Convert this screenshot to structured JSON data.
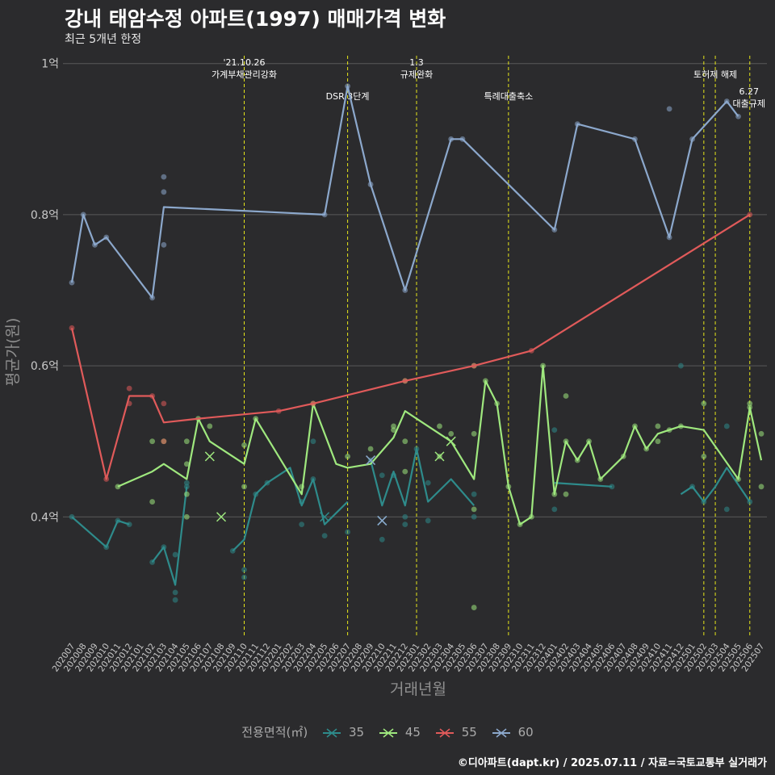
{
  "title": "강내 태암수정 아파트(1997) 매매가격 변화",
  "subtitle": "최근 5개년 한정",
  "caption": "©디아파트(dapt.kr) / 2025.07.11 / 자료=국토교통부 실거래가",
  "legend": {
    "title": "전용면적(㎡)",
    "items": [
      {
        "label": "35",
        "color": "#2e8b8b"
      },
      {
        "label": "45",
        "color": "#9fe87e"
      },
      {
        "label": "55",
        "color": "#e05a5a"
      },
      {
        "label": "60",
        "color": "#8ca8cc"
      }
    ]
  },
  "chart_data": {
    "type": "line",
    "xlabel": "거래년월",
    "ylabel": "평균가(원)",
    "ylim": [
      0.24,
      1.02
    ],
    "yticks": [
      {
        "value": 0.4,
        "label": "0.4억"
      },
      {
        "value": 0.6,
        "label": "0.6억"
      },
      {
        "value": 0.8,
        "label": "0.8억"
      },
      {
        "value": 1.0,
        "label": "1억"
      }
    ],
    "categories": [
      "202007",
      "202008",
      "202009",
      "202010",
      "202011",
      "202012",
      "202101",
      "202102",
      "202103",
      "202104",
      "202105",
      "202106",
      "202107",
      "202108",
      "202109",
      "202110",
      "202111",
      "202112",
      "202201",
      "202202",
      "202203",
      "202204",
      "202205",
      "202206",
      "202207",
      "202208",
      "202209",
      "202210",
      "202211",
      "202212",
      "202301",
      "202302",
      "202303",
      "202304",
      "202305",
      "202306",
      "202307",
      "202308",
      "202309",
      "202310",
      "202311",
      "202312",
      "202401",
      "202402",
      "202403",
      "202404",
      "202405",
      "202406",
      "202407",
      "202408",
      "202409",
      "202410",
      "202411",
      "202412",
      "202501",
      "202502",
      "202503",
      "202504",
      "202505",
      "202506",
      "202507"
    ],
    "tick_labels": [
      "202007",
      "202008",
      "202009",
      "202010",
      "202011",
      "202012",
      "202101",
      "202102",
      "202103",
      "202104",
      "202105",
      "202106",
      "202107",
      "202108",
      "202109",
      "202110",
      "202111",
      "202112",
      "202201",
      "202202",
      "202203",
      "202204",
      "202205",
      "202206",
      "202207",
      "202208",
      "202209",
      "202210",
      "202211",
      "202212",
      "202301",
      "202302",
      "202303",
      "202304",
      "202305",
      "202306",
      "202307",
      "202308",
      "202309",
      "202310",
      "202311",
      "202312",
      "202401",
      "202402",
      "202403",
      "202404",
      "202405",
      "202406",
      "202407",
      "202408",
      "202409",
      "202410",
      "202411",
      "202412",
      "202501",
      "202502",
      "202503",
      "202504",
      "202505",
      "202506",
      "202507"
    ],
    "events": [
      {
        "x": 15.0,
        "lines": [
          "'21.10.26",
          "가계부채관리강화"
        ],
        "level": 0
      },
      {
        "x": 24.0,
        "lines": [
          "DSR 3단계"
        ],
        "level": 1
      },
      {
        "x": 30.0,
        "lines": [
          "1.3",
          "규제완화"
        ],
        "level": 0
      },
      {
        "x": 38.0,
        "lines": [
          "특례대출축소"
        ],
        "level": 1
      },
      {
        "x": 55.0,
        "lines": [],
        "level": 0
      },
      {
        "x": 56.0,
        "lines": [
          "토허제 해제"
        ],
        "level": 0
      },
      {
        "x": 59.0,
        "lines": [
          "6.27",
          "대출규제"
        ],
        "level": 2
      }
    ],
    "series": [
      {
        "name": "35",
        "color": "#2e8b8b",
        "line": [
          [
            0,
            0.4
          ],
          [
            3,
            0.36
          ],
          [
            4,
            0.395
          ],
          [
            5,
            0.39
          ],
          [
            null,
            null
          ],
          [
            7,
            0.34
          ],
          [
            8,
            0.36
          ],
          [
            9,
            0.31
          ],
          [
            10,
            0.44
          ],
          [
            null,
            null
          ],
          [
            14,
            0.355
          ],
          [
            15,
            0.37
          ],
          [
            16,
            0.43
          ],
          [
            17,
            0.445
          ],
          [
            19,
            0.465
          ],
          [
            20,
            0.415
          ],
          [
            21,
            0.45
          ],
          [
            22,
            0.39
          ],
          [
            24,
            0.42
          ],
          [
            null,
            null
          ],
          [
            26,
            0.475
          ],
          [
            27,
            0.415
          ],
          [
            28,
            0.46
          ],
          [
            29,
            0.415
          ],
          [
            30,
            0.49
          ],
          [
            31,
            0.42
          ],
          [
            33,
            0.45
          ],
          [
            35,
            0.415
          ],
          [
            null,
            null
          ],
          [
            42,
            0.445
          ],
          [
            47,
            0.44
          ],
          [
            null,
            null
          ],
          [
            53,
            0.43
          ],
          [
            54,
            0.44
          ],
          [
            55,
            0.42
          ],
          [
            56,
            0.44
          ],
          [
            57,
            0.465
          ],
          [
            59,
            0.42
          ]
        ],
        "points": [
          [
            0,
            0.4
          ],
          [
            3,
            0.36
          ],
          [
            4,
            0.395
          ],
          [
            5,
            0.39
          ],
          [
            7,
            0.34
          ],
          [
            8,
            0.36
          ],
          [
            9,
            0.35
          ],
          [
            9,
            0.3
          ],
          [
            9,
            0.29
          ],
          [
            10,
            0.445
          ],
          [
            10,
            0.44
          ],
          [
            14,
            0.355
          ],
          [
            15,
            0.33
          ],
          [
            15,
            0.32
          ],
          [
            16,
            0.43
          ],
          [
            17,
            0.445
          ],
          [
            20,
            0.39
          ],
          [
            20,
            0.42
          ],
          [
            21,
            0.5
          ],
          [
            21,
            0.45
          ],
          [
            22,
            0.375
          ],
          [
            24,
            0.38
          ],
          [
            26,
            0.475
          ],
          [
            27,
            0.455
          ],
          [
            27,
            0.37
          ],
          [
            28,
            0.455
          ],
          [
            29,
            0.4
          ],
          [
            29,
            0.39
          ],
          [
            30,
            0.49
          ],
          [
            31,
            0.395
          ],
          [
            31,
            0.445
          ],
          [
            35,
            0.43
          ],
          [
            35,
            0.4
          ],
          [
            42,
            0.41
          ],
          [
            42,
            0.515
          ],
          [
            47,
            0.44
          ],
          [
            53,
            0.6
          ],
          [
            54,
            0.44
          ],
          [
            55,
            0.42
          ],
          [
            57,
            0.41
          ],
          [
            57,
            0.52
          ],
          [
            59,
            0.42
          ]
        ],
        "crosses": [
          [
            22,
            0.4
          ],
          [
            27,
            0.395
          ]
        ]
      },
      {
        "name": "45",
        "color": "#9fe87e",
        "line": [
          [
            4,
            0.44
          ],
          [
            7,
            0.46
          ],
          [
            8,
            0.47
          ],
          [
            10,
            0.45
          ],
          [
            11,
            0.53
          ],
          [
            12,
            0.5
          ],
          [
            15,
            0.47
          ],
          [
            16,
            0.53
          ],
          [
            20,
            0.43
          ],
          [
            21,
            0.55
          ],
          [
            23,
            0.47
          ],
          [
            24,
            0.465
          ],
          [
            26,
            0.47
          ],
          [
            28,
            0.505
          ],
          [
            29,
            0.54
          ],
          [
            31,
            0.52
          ],
          [
            33,
            0.5
          ],
          [
            35,
            0.45
          ],
          [
            36,
            0.58
          ],
          [
            37,
            0.55
          ],
          [
            38,
            0.44
          ],
          [
            39,
            0.39
          ],
          [
            40,
            0.4
          ],
          [
            41,
            0.6
          ],
          [
            42,
            0.43
          ],
          [
            43,
            0.5
          ],
          [
            44,
            0.475
          ],
          [
            45,
            0.5
          ],
          [
            46,
            0.45
          ],
          [
            48,
            0.48
          ],
          [
            49,
            0.52
          ],
          [
            50,
            0.49
          ],
          [
            51,
            0.51
          ],
          [
            52,
            0.515
          ],
          [
            53,
            0.52
          ],
          [
            55,
            0.515
          ],
          [
            58,
            0.45
          ],
          [
            59,
            0.545
          ],
          [
            60,
            0.475
          ]
        ],
        "points": [
          [
            4,
            0.44
          ],
          [
            7,
            0.5
          ],
          [
            7,
            0.42
          ],
          [
            8,
            0.5
          ],
          [
            10,
            0.5
          ],
          [
            10,
            0.47
          ],
          [
            10,
            0.43
          ],
          [
            10,
            0.4
          ],
          [
            11,
            0.53
          ],
          [
            12,
            0.52
          ],
          [
            15,
            0.495
          ],
          [
            15,
            0.44
          ],
          [
            16,
            0.53
          ],
          [
            20,
            0.44
          ],
          [
            21,
            0.55
          ],
          [
            24,
            0.48
          ],
          [
            26,
            0.49
          ],
          [
            28,
            0.52
          ],
          [
            28,
            0.515
          ],
          [
            29,
            0.58
          ],
          [
            29,
            0.5
          ],
          [
            29,
            0.46
          ],
          [
            32,
            0.52
          ],
          [
            32,
            0.48
          ],
          [
            33,
            0.51
          ],
          [
            35,
            0.6
          ],
          [
            35,
            0.51
          ],
          [
            35,
            0.41
          ],
          [
            35,
            0.28
          ],
          [
            36,
            0.58
          ],
          [
            37,
            0.55
          ],
          [
            38,
            0.44
          ],
          [
            39,
            0.39
          ],
          [
            40,
            0.4
          ],
          [
            41,
            0.6
          ],
          [
            42,
            0.43
          ],
          [
            43,
            0.56
          ],
          [
            43,
            0.43
          ],
          [
            43,
            0.5
          ],
          [
            44,
            0.475
          ],
          [
            45,
            0.5
          ],
          [
            46,
            0.45
          ],
          [
            48,
            0.48
          ],
          [
            49,
            0.52
          ],
          [
            50,
            0.49
          ],
          [
            51,
            0.52
          ],
          [
            51,
            0.5
          ],
          [
            52,
            0.515
          ],
          [
            53,
            0.52
          ],
          [
            55,
            0.55
          ],
          [
            55,
            0.48
          ],
          [
            58,
            0.45
          ],
          [
            59,
            0.545
          ],
          [
            59,
            0.55
          ],
          [
            60,
            0.51
          ],
          [
            60,
            0.44
          ]
        ],
        "crosses": [
          [
            12,
            0.48
          ],
          [
            13,
            0.4
          ],
          [
            32,
            0.48
          ],
          [
            33,
            0.5
          ]
        ]
      },
      {
        "name": "55",
        "color": "#e05a5a",
        "line": [
          [
            0,
            0.65
          ],
          [
            3,
            0.45
          ],
          [
            5,
            0.56
          ],
          [
            7,
            0.56
          ],
          [
            8,
            0.525
          ],
          [
            11,
            0.53
          ],
          [
            18,
            0.54
          ],
          [
            21,
            0.55
          ],
          [
            29,
            0.58
          ],
          [
            35,
            0.6
          ],
          [
            40,
            0.62
          ],
          [
            59,
            0.8
          ]
        ],
        "points": [
          [
            0,
            0.65
          ],
          [
            3,
            0.45
          ],
          [
            5,
            0.57
          ],
          [
            5,
            0.55
          ],
          [
            7,
            0.56
          ],
          [
            8,
            0.55
          ],
          [
            8,
            0.5
          ],
          [
            18,
            0.54
          ],
          [
            21,
            0.55
          ],
          [
            29,
            0.58
          ],
          [
            35,
            0.6
          ],
          [
            40,
            0.62
          ],
          [
            59,
            0.8
          ]
        ],
        "crosses": []
      },
      {
        "name": "60",
        "color": "#8ca8cc",
        "line": [
          [
            0,
            0.71
          ],
          [
            1,
            0.8
          ],
          [
            2,
            0.76
          ],
          [
            3,
            0.77
          ],
          [
            7,
            0.69
          ],
          [
            8,
            0.81
          ],
          [
            22,
            0.8
          ],
          [
            24,
            0.97
          ],
          [
            26,
            0.84
          ],
          [
            29,
            0.7
          ],
          [
            33,
            0.9
          ],
          [
            34,
            0.9
          ],
          [
            42,
            0.78
          ],
          [
            44,
            0.92
          ],
          [
            49,
            0.9
          ],
          [
            52,
            0.77
          ],
          [
            54,
            0.9
          ],
          [
            57,
            0.95
          ],
          [
            58,
            0.93
          ]
        ],
        "points": [
          [
            0,
            0.71
          ],
          [
            1,
            0.8
          ],
          [
            2,
            0.76
          ],
          [
            3,
            0.77
          ],
          [
            7,
            0.69
          ],
          [
            8,
            0.85
          ],
          [
            8,
            0.83
          ],
          [
            8,
            0.76
          ],
          [
            22,
            0.8
          ],
          [
            24,
            0.97
          ],
          [
            26,
            0.84
          ],
          [
            29,
            0.7
          ],
          [
            33,
            0.9
          ],
          [
            34,
            0.9
          ],
          [
            42,
            0.78
          ],
          [
            44,
            0.92
          ],
          [
            49,
            0.9
          ],
          [
            52,
            0.94
          ],
          [
            52,
            0.77
          ],
          [
            54,
            0.9
          ],
          [
            57,
            0.95
          ],
          [
            58,
            0.93
          ]
        ],
        "crosses": [
          [
            26,
            0.475
          ],
          [
            27,
            0.395
          ]
        ]
      }
    ]
  }
}
